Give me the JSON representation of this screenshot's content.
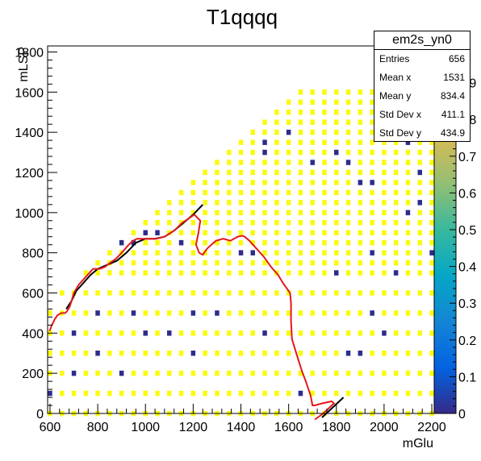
{
  "chart_data": {
    "type": "heatmap",
    "title": "T1qqqq",
    "xlabel": "mGlu",
    "ylabel": "mLSP",
    "xlim": [
      590,
      2210
    ],
    "ylim": [
      0,
      1830
    ],
    "x_ticks": [
      "600",
      "800",
      "1000",
      "1200",
      "1400",
      "1600",
      "1800",
      "2000",
      "2200"
    ],
    "y_ticks": [
      "0",
      "200",
      "400",
      "600",
      "800",
      "1000",
      "1200",
      "1400",
      "1600",
      "1800"
    ],
    "z_range": [
      0,
      1
    ],
    "z_ticks": [
      "0",
      "0.1",
      "0.2",
      "0.3",
      "0.4",
      "0.5",
      "0.6",
      "0.7",
      "0.8",
      "0.9"
    ],
    "colormap": [
      "#352a87",
      "#0363e1",
      "#1485d4",
      "#06a7c6",
      "#38b99e",
      "#92bf73",
      "#d9ba56",
      "#fcce2e",
      "#f9fb0e"
    ],
    "colors": {
      "high": "#f9fb0e",
      "low": "#2e2c8a",
      "contour_observed": "#e3181a",
      "contour_expected": "#000000"
    },
    "bin_values": {
      "yellow_value": 1,
      "dark_value": 0
    },
    "dark_bins": [
      [
        600,
        100
      ],
      [
        700,
        400
      ],
      [
        700,
        200
      ],
      [
        800,
        500
      ],
      [
        800,
        300
      ],
      [
        900,
        850
      ],
      [
        900,
        200
      ],
      [
        950,
        500
      ],
      [
        950,
        850
      ],
      [
        1000,
        900
      ],
      [
        1000,
        400
      ],
      [
        1050,
        900
      ],
      [
        1100,
        400
      ],
      [
        1100,
        650
      ],
      [
        1150,
        850
      ],
      [
        1200,
        250
      ],
      [
        1200,
        300
      ],
      [
        1200,
        500
      ],
      [
        1300,
        500
      ],
      [
        1400,
        800
      ],
      [
        1400,
        1500
      ],
      [
        1450,
        800
      ],
      [
        1500,
        1300
      ],
      [
        1500,
        1350
      ],
      [
        1500,
        450
      ],
      [
        1500,
        400
      ],
      [
        1550,
        650
      ],
      [
        1600,
        1400
      ],
      [
        1650,
        150
      ],
      [
        1650,
        100
      ],
      [
        1700,
        1250
      ],
      [
        1750,
        350
      ],
      [
        1800,
        700
      ],
      [
        1800,
        1300
      ],
      [
        1850,
        300
      ],
      [
        1850,
        150
      ],
      [
        1850,
        1250
      ],
      [
        1900,
        1150
      ],
      [
        1900,
        300
      ],
      [
        1950,
        1150
      ],
      [
        1950,
        500
      ],
      [
        1950,
        800
      ],
      [
        2000,
        400
      ],
      [
        2000,
        1600
      ],
      [
        2050,
        700
      ],
      [
        2100,
        1350
      ],
      [
        2100,
        1000
      ],
      [
        2150,
        550
      ],
      [
        2150,
        1200
      ],
      [
        2200,
        800
      ],
      [
        2150,
        1050
      ]
    ],
    "observed_contour": {
      "x": [
        598,
        608,
        620,
        632,
        648,
        664,
        672,
        682,
        690,
        700,
        720,
        750,
        780,
        808,
        830,
        852,
        876,
        900,
        930,
        948,
        965,
        985,
        1010,
        1045,
        1080,
        1120,
        1155,
        1180,
        1205,
        1230,
        1222,
        1212,
        1225,
        1240,
        1258,
        1276,
        1296,
        1326,
        1356,
        1386,
        1406,
        1416,
        1436,
        1466,
        1496,
        1526,
        1556,
        1576,
        1606,
        1610,
        1610,
        1614,
        1632,
        1656,
        1672,
        1692,
        1700,
        1710,
        1740,
        1780,
        1790,
        1745,
        1710
      ],
      "y": [
        410,
        440,
        470,
        490,
        500,
        500,
        510,
        530,
        560,
        600,
        640,
        680,
        720,
        720,
        730,
        750,
        770,
        800,
        840,
        860,
        870,
        870,
        870,
        870,
        880,
        910,
        950,
        970,
        990,
        960,
        900,
        840,
        800,
        790,
        820,
        840,
        860,
        870,
        860,
        880,
        885,
        880,
        860,
        820,
        780,
        730,
        690,
        650,
        600,
        550,
        460,
        370,
        300,
        210,
        160,
        90,
        40,
        40,
        50,
        60,
        50,
        0,
        -30
      ]
    },
    "expected_contour": {
      "x": [
        668,
        690,
        710,
        740,
        770,
        800,
        840,
        880,
        920,
        960,
        1000,
        1040,
        1080,
        1120,
        1160,
        1200,
        1240
      ],
      "y": [
        520,
        560,
        610,
        650,
        690,
        720,
        740,
        760,
        800,
        850,
        870,
        870,
        880,
        910,
        950,
        990,
        1040
      ],
      "x2": [
        1740,
        1830
      ],
      "y2": [
        -20,
        80
      ]
    },
    "stats": {
      "name": "em2s_yn0",
      "rows": [
        {
          "label": "Entries",
          "value": "656"
        },
        {
          "label": "Mean x",
          "value": "1531"
        },
        {
          "label": "Mean y",
          "value": "834.4"
        },
        {
          "label": "Std Dev x",
          "value": "411.1"
        },
        {
          "label": "Std Dev y",
          "value": "434.9"
        }
      ]
    }
  }
}
